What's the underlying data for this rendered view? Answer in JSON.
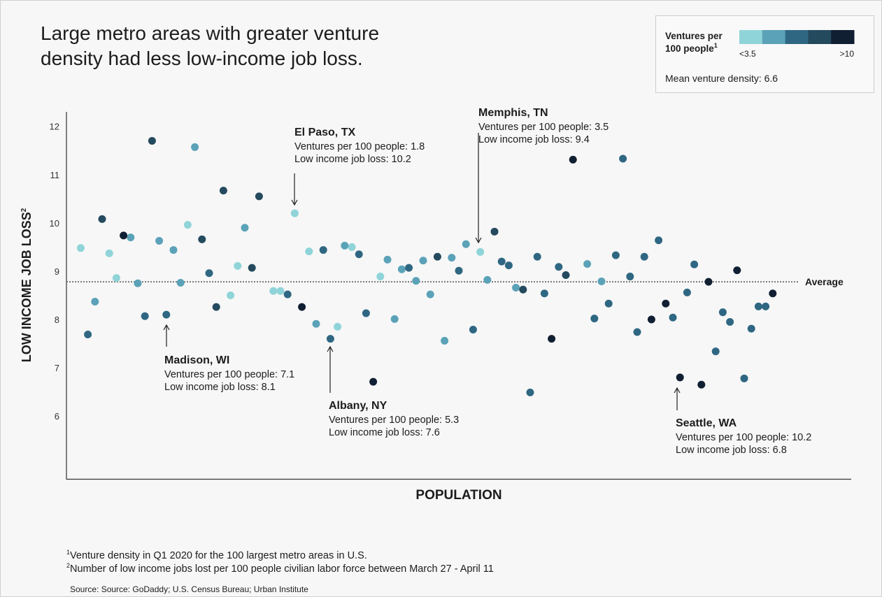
{
  "chart_data": {
    "type": "scatter",
    "title_lines": [
      "Large metro areas with greater venture",
      "density had less low-income job loss."
    ],
    "legend": {
      "title_lines": [
        "Ventures per",
        "100 people"
      ],
      "title_note": "1",
      "min_label": "<3.5",
      "max_label": ">10",
      "note": "Mean venture density: 6.6"
    },
    "x_label": "POPULATION",
    "y_label": "LOW INCOME JOB LOSS",
    "y_label_note": "2",
    "xlim": [
      0,
      110
    ],
    "ylim": [
      4.7,
      12.3
    ],
    "yticks": [
      6,
      7,
      8,
      9,
      10,
      11,
      12
    ],
    "average": {
      "value": 8.78,
      "label": "Average"
    },
    "series": [
      {
        "color": "#8fd4d9",
        "x": [
          2,
          6,
          7,
          17,
          23,
          24,
          29,
          30,
          32,
          34,
          38,
          40,
          44,
          58
        ],
        "values": [
          9.48,
          9.37,
          8.86,
          9.96,
          8.5,
          9.11,
          8.59,
          8.59,
          10.2,
          9.41,
          7.85,
          9.5,
          8.89,
          9.4
        ]
      },
      {
        "color": "#5ba2b8",
        "x": [
          4,
          9,
          10,
          13,
          15,
          16,
          18,
          25,
          35,
          39,
          45,
          46,
          47,
          49,
          50,
          51,
          53,
          54,
          56,
          59,
          63,
          73,
          75
        ],
        "values": [
          8.37,
          9.7,
          8.75,
          9.63,
          9.44,
          8.76,
          11.57,
          9.9,
          7.91,
          9.53,
          9.24,
          8.01,
          9.04,
          8.8,
          9.22,
          8.52,
          7.56,
          9.28,
          9.56,
          8.82,
          8.66,
          9.15,
          8.79
        ]
      },
      {
        "color": "#2f6783",
        "x": [
          3,
          11,
          14,
          20,
          31,
          36,
          37,
          41,
          42,
          48,
          55,
          57,
          61,
          62,
          65,
          66,
          67,
          69,
          74,
          76,
          77,
          78,
          79,
          80,
          81,
          83,
          85,
          87,
          88,
          91,
          92,
          93,
          95,
          96,
          97,
          98
        ],
        "values": [
          7.69,
          8.07,
          8.1,
          8.96,
          8.52,
          9.44,
          7.6,
          9.35,
          8.13,
          9.07,
          9.01,
          7.79,
          9.2,
          9.12,
          6.49,
          9.3,
          8.54,
          9.09,
          8.02,
          8.33,
          9.33,
          11.33,
          8.89,
          7.74,
          9.3,
          9.64,
          8.04,
          8.56,
          9.14,
          7.34,
          8.15,
          7.95,
          6.78,
          7.81,
          8.27,
          8.27
        ]
      },
      {
        "color": "#244a5e",
        "x": [
          5,
          12,
          19,
          21,
          22,
          26,
          27,
          52,
          60,
          64,
          70
        ],
        "values": [
          10.08,
          11.7,
          9.66,
          8.26,
          10.67,
          9.07,
          10.55,
          9.3,
          9.82,
          8.62,
          8.92
        ]
      },
      {
        "color": "#111f33",
        "x": [
          8,
          33,
          43,
          68,
          71,
          82,
          84,
          86,
          89,
          90,
          94,
          99
        ],
        "values": [
          9.74,
          8.26,
          6.71,
          7.6,
          11.31,
          8.0,
          8.33,
          6.8,
          6.65,
          8.78,
          9.02,
          8.54
        ]
      }
    ],
    "annotations": [
      {
        "title": "El Paso, TX",
        "lines": [
          "Ventures per 100 people: 1.8",
          "Low income job loss: 10.2"
        ]
      },
      {
        "title": "Memphis, TN",
        "lines": [
          "Ventures per 100 people: 3.5",
          "Low income job loss: 9.4"
        ]
      },
      {
        "title": "Madison, WI",
        "lines": [
          "Ventures per 100 people: 7.1",
          "Low income job loss: 8.1"
        ]
      },
      {
        "title": "Albany, NY",
        "lines": [
          "Ventures per 100 people: 5.3",
          "Low income job loss: 7.6"
        ]
      },
      {
        "title": "Seattle, WA",
        "lines": [
          "Ventures per 100 people: 10.2",
          "Low income job loss: 6.8"
        ]
      }
    ],
    "footnotes": [
      {
        "mark": "1",
        "text": "Venture density in Q1 2020 for the 100 largest metro areas in U.S."
      },
      {
        "mark": "2",
        "text": "Number of low income jobs lost per 100 people civilian labor force between March 27 - April 11"
      }
    ],
    "source": "Source: Source: GoDaddy; U.S. Census Bureau; Urban Institute"
  }
}
